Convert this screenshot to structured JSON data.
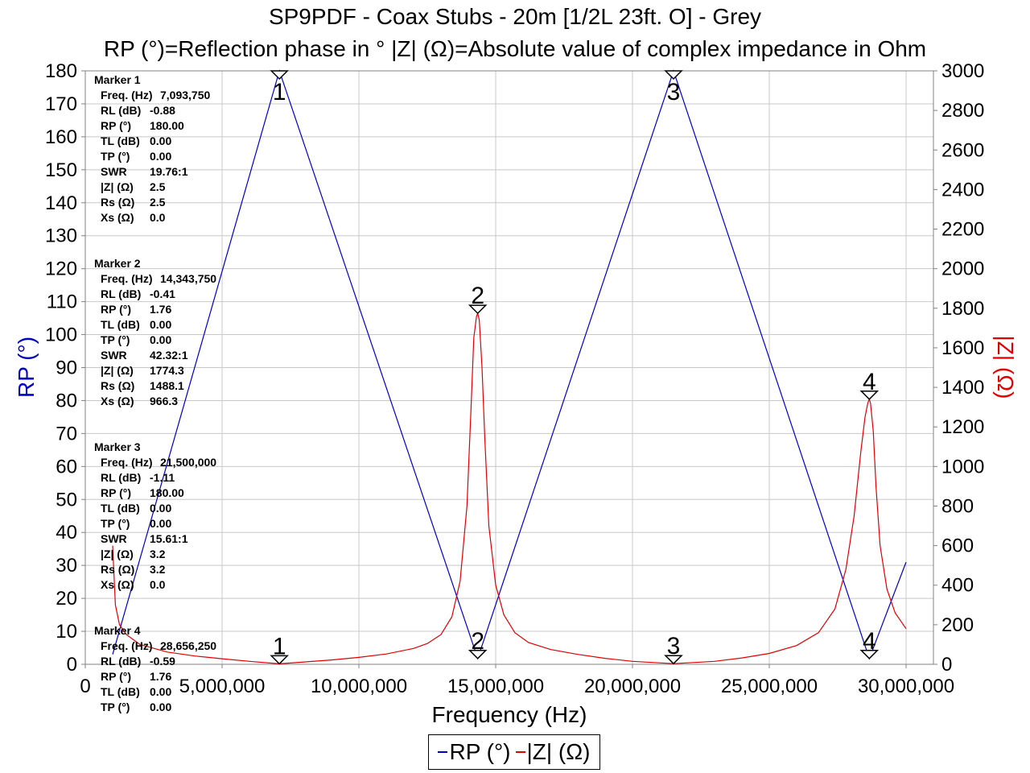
{
  "chart_data": {
    "type": "line",
    "title": "SP9PDF - Coax Stubs - 20m [1/2L 23ft. O] - Grey",
    "subtitle": "RP (°)=Reflection phase in °    |Z| (Ω)=Absolute value of complex impedance in Ohm",
    "xlabel": "Frequency (Hz)",
    "ylabel_left": "RP (°)",
    "ylabel_right": "|Z| (Ω)",
    "xlim": [
      0,
      31000000
    ],
    "ylim_left": [
      0,
      180
    ],
    "ylim_right": [
      0,
      3000
    ],
    "x_ticks": [
      "0",
      "5,000,000",
      "10,000,000",
      "15,000,000",
      "20,000,000",
      "25,000,000",
      "30,000,000"
    ],
    "y_left_ticks": [
      "0",
      "10",
      "20",
      "30",
      "40",
      "50",
      "60",
      "70",
      "80",
      "90",
      "100",
      "110",
      "120",
      "130",
      "140",
      "150",
      "160",
      "170",
      "180"
    ],
    "y_right_ticks": [
      "0",
      "200",
      "400",
      "600",
      "800",
      "1000",
      "1200",
      "1400",
      "1600",
      "1800",
      "2000",
      "2200",
      "2400",
      "2600",
      "2800",
      "3000"
    ],
    "grid": true,
    "legend_position": "bottom-center",
    "colors": {
      "RP": "#0000c0",
      "Z": "#e00000"
    },
    "series": [
      {
        "name": "RP (°)",
        "axis": "left",
        "x": [
          1000000,
          7093750,
          14343750,
          21500000,
          28656250,
          30000000
        ],
        "values": [
          3,
          180,
          1.76,
          180,
          1.76,
          31
        ]
      },
      {
        "name": "|Z| (Ω)",
        "axis": "right",
        "x": [
          1000000,
          1100000,
          1250000,
          1500000,
          2000000,
          3000000,
          4000000,
          5000000,
          6000000,
          7093750,
          8000000,
          9000000,
          10000000,
          11000000,
          12000000,
          12500000,
          13000000,
          13400000,
          13700000,
          13950000,
          14100000,
          14200000,
          14300000,
          14343750,
          14400000,
          14500000,
          14600000,
          14750000,
          15000000,
          15300000,
          15700000,
          16200000,
          17000000,
          18000000,
          19000000,
          20000000,
          21500000,
          23000000,
          24000000,
          25000000,
          26000000,
          26800000,
          27400000,
          27800000,
          28100000,
          28350000,
          28500000,
          28600000,
          28656250,
          28700000,
          28800000,
          28900000,
          29050000,
          29300000,
          29600000,
          30000000
        ],
        "values": [
          600,
          300,
          200,
          150,
          100,
          62,
          42,
          28,
          15,
          2.5,
          12,
          22,
          35,
          52,
          80,
          105,
          150,
          240,
          420,
          800,
          1300,
          1650,
          1760,
          1774,
          1740,
          1500,
          1150,
          700,
          400,
          250,
          160,
          110,
          75,
          50,
          30,
          15,
          3.2,
          15,
          32,
          55,
          95,
          160,
          280,
          480,
          750,
          1080,
          1250,
          1320,
          1340,
          1320,
          1180,
          900,
          600,
          380,
          260,
          180
        ]
      }
    ],
    "markers": [
      {
        "label": "1",
        "x": 7093750,
        "rp": 180,
        "z": 2.5
      },
      {
        "label": "2",
        "x": 14343750,
        "rp": 1.76,
        "z": 1774.3
      },
      {
        "label": "3",
        "x": 21500000,
        "rp": 180,
        "z": 3.2
      },
      {
        "label": "4",
        "x": 28656250,
        "rp": 1.76,
        "z": 1340
      }
    ],
    "marker_panel": [
      {
        "title": "Marker 1",
        "rows": [
          [
            "Freq. (Hz)",
            "7,093,750"
          ],
          [
            "RL (dB)",
            "-0.88"
          ],
          [
            "RP (°)",
            "180.00"
          ],
          [
            "TL (dB)",
            "0.00"
          ],
          [
            "TP (°)",
            "0.00"
          ],
          [
            "SWR",
            "19.76:1"
          ],
          [
            "|Z| (Ω)",
            "2.5"
          ],
          [
            "Rs (Ω)",
            "2.5"
          ],
          [
            "Xs (Ω)",
            "0.0"
          ]
        ]
      },
      {
        "title": "Marker 2",
        "rows": [
          [
            "Freq. (Hz)",
            "14,343,750"
          ],
          [
            "RL (dB)",
            "-0.41"
          ],
          [
            "RP (°)",
            "1.76"
          ],
          [
            "TL (dB)",
            "0.00"
          ],
          [
            "TP (°)",
            "0.00"
          ],
          [
            "SWR",
            "42.32:1"
          ],
          [
            "|Z| (Ω)",
            "1774.3"
          ],
          [
            "Rs (Ω)",
            "1488.1"
          ],
          [
            "Xs (Ω)",
            "966.3"
          ]
        ]
      },
      {
        "title": "Marker 3",
        "rows": [
          [
            "Freq. (Hz)",
            "21,500,000"
          ],
          [
            "RL (dB)",
            "-1.11"
          ],
          [
            "RP (°)",
            "180.00"
          ],
          [
            "TL (dB)",
            "0.00"
          ],
          [
            "TP (°)",
            "0.00"
          ],
          [
            "SWR",
            "15.61:1"
          ],
          [
            "|Z| (Ω)",
            "3.2"
          ],
          [
            "Rs (Ω)",
            "3.2"
          ],
          [
            "Xs (Ω)",
            "0.0"
          ]
        ]
      },
      {
        "title": "Marker 4",
        "rows": [
          [
            "Freq. (Hz)",
            "28,656,250"
          ],
          [
            "RL (dB)",
            "-0.59"
          ],
          [
            "RP (°)",
            "1.76"
          ],
          [
            "TL (dB)",
            "0.00"
          ],
          [
            "TP (°)",
            "0.00"
          ]
        ]
      }
    ]
  }
}
